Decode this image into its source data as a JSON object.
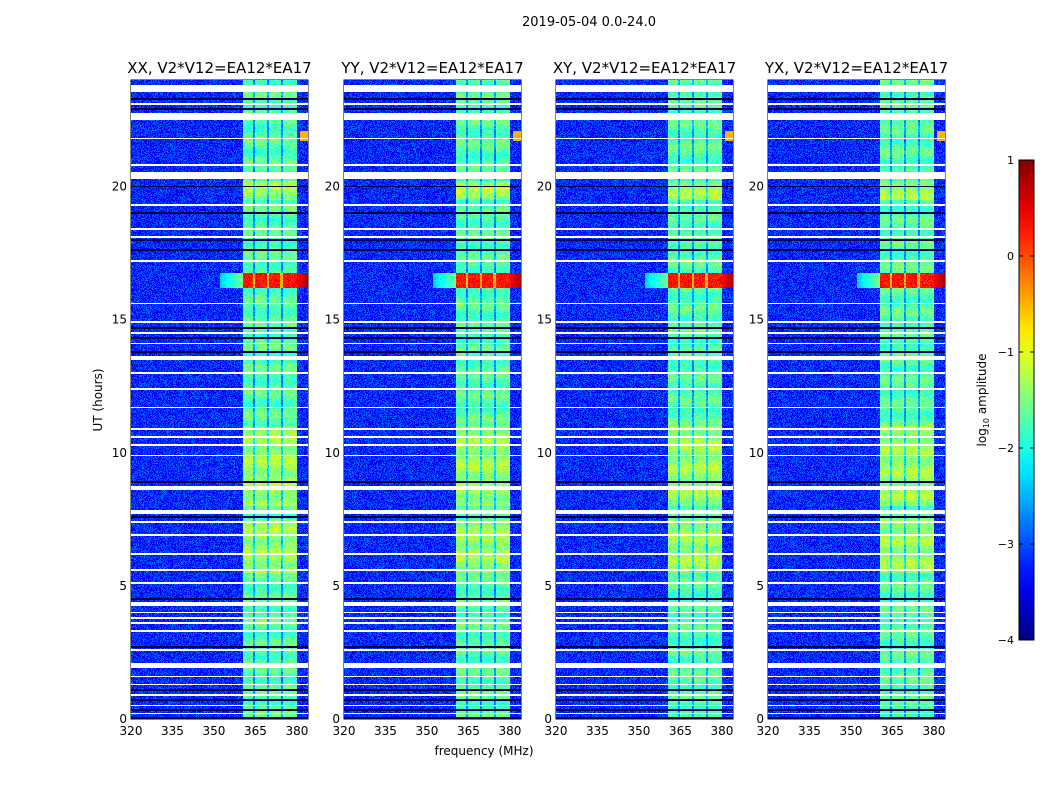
{
  "chart_data": {
    "type": "heatmap",
    "suptitle": "2019-05-04 0.0-24.0",
    "xlabel": "frequency (MHz)",
    "ylabel": "UT (hours)",
    "xlim": [
      320,
      384
    ],
    "ylim": [
      0,
      24
    ],
    "xticks": [
      320,
      335,
      350,
      365,
      380
    ],
    "yticks": [
      0,
      5,
      10,
      15,
      20
    ],
    "panels": [
      {
        "title": "XX, V2*V12=EA12*EA17",
        "pol": "XX"
      },
      {
        "title": "YY, V2*V12=EA12*EA17",
        "pol": "YY"
      },
      {
        "title": "XY, V2*V12=EA12*EA17",
        "pol": "XY"
      },
      {
        "title": "YX, V2*V12=EA12*EA17",
        "pol": "YX"
      }
    ],
    "colorbar": {
      "label": "log10 amplitude",
      "label_main": "log",
      "label_sub": "10",
      "label_rest": " amplitude",
      "colormap": "jet",
      "range": [
        -4,
        1
      ],
      "ticks": [
        1,
        0,
        -1,
        -2,
        -3,
        -4
      ],
      "tick_labels": [
        "1",
        "0",
        "−1",
        "−2",
        "−3",
        "−4"
      ]
    },
    "background_log_amp": -3.2,
    "band": {
      "freq_range": [
        360.5,
        380
      ],
      "log_amp": -1.7,
      "channel_edges": [
        364.5,
        369.5,
        374.5
      ]
    },
    "rfi_burst": {
      "hours": [
        16.2,
        16.75
      ],
      "freq_range": [
        360.5,
        380
      ],
      "log_amp": 0.3
    },
    "flagged_gaps_hours": [
      [
        23.55,
        23.8
      ],
      [
        22.5,
        22.76
      ],
      [
        20.3,
        20.55
      ],
      [
        13.5,
        13.65
      ],
      [
        8.6,
        8.75
      ],
      [
        7.7,
        7.85
      ],
      [
        4.25,
        4.4
      ],
      [
        1.9,
        2.1
      ]
    ],
    "thin_flag_hours": [
      23.1,
      21.8,
      20.8,
      19.3,
      18.4,
      18.1,
      17.2,
      15.6,
      14.9,
      14.5,
      14.1,
      13.0,
      12.4,
      11.7,
      10.9,
      10.6,
      10.3,
      9.9,
      7.4,
      6.9,
      6.2,
      5.6,
      5.1,
      4.0,
      3.8,
      3.6,
      3.3,
      2.6,
      1.6,
      1.3,
      0.9,
      0.5,
      0.2
    ],
    "dark_row_hours": [
      23.3,
      22.9,
      20.0,
      19.0,
      18.0,
      17.6,
      14.7,
      14.3,
      13.8,
      8.9,
      7.6,
      4.5,
      2.7,
      1.1,
      0.7,
      0.35,
      0.05
    ]
  }
}
